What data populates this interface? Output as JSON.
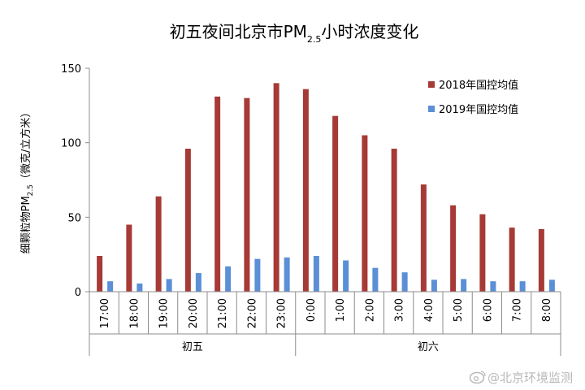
{
  "chart_data": {
    "type": "bar",
    "title": {
      "main": "初五夜间北京市PM",
      "sub": "2.5",
      "tail": "小时浓度变化"
    },
    "ylabel": {
      "main": "细颗粒物PM",
      "sub": "2.5",
      "tail": "（微克/立方米）"
    },
    "ylim": [
      0,
      150
    ],
    "yticks": [
      0,
      50,
      100,
      150
    ],
    "categories": [
      "17:00",
      "18:00",
      "19:00",
      "20:00",
      "21:00",
      "22:00",
      "23:00",
      "0:00",
      "1:00",
      "2:00",
      "3:00",
      "4:00",
      "5:00",
      "6:00",
      "7:00",
      "8:00"
    ],
    "groups": [
      {
        "label": "初五",
        "start": 0,
        "end": 6
      },
      {
        "label": "初六",
        "start": 7,
        "end": 15
      }
    ],
    "series": [
      {
        "name": "2018年国控均值",
        "color": "#a63a36",
        "values": [
          24,
          45,
          64,
          96,
          131,
          130,
          140,
          136,
          118,
          105,
          96,
          72,
          58,
          52,
          43,
          42
        ]
      },
      {
        "name": "2019年国控均值",
        "color": "#5b8fd6",
        "values": [
          7,
          5.5,
          8.5,
          12.5,
          17,
          22,
          23,
          24,
          21,
          16,
          13,
          8,
          8.5,
          7,
          7,
          8
        ]
      }
    ],
    "legend_position": "top-right",
    "grid": false
  },
  "watermark": {
    "icon": "weibo-icon",
    "text": "@北京环境监测"
  }
}
